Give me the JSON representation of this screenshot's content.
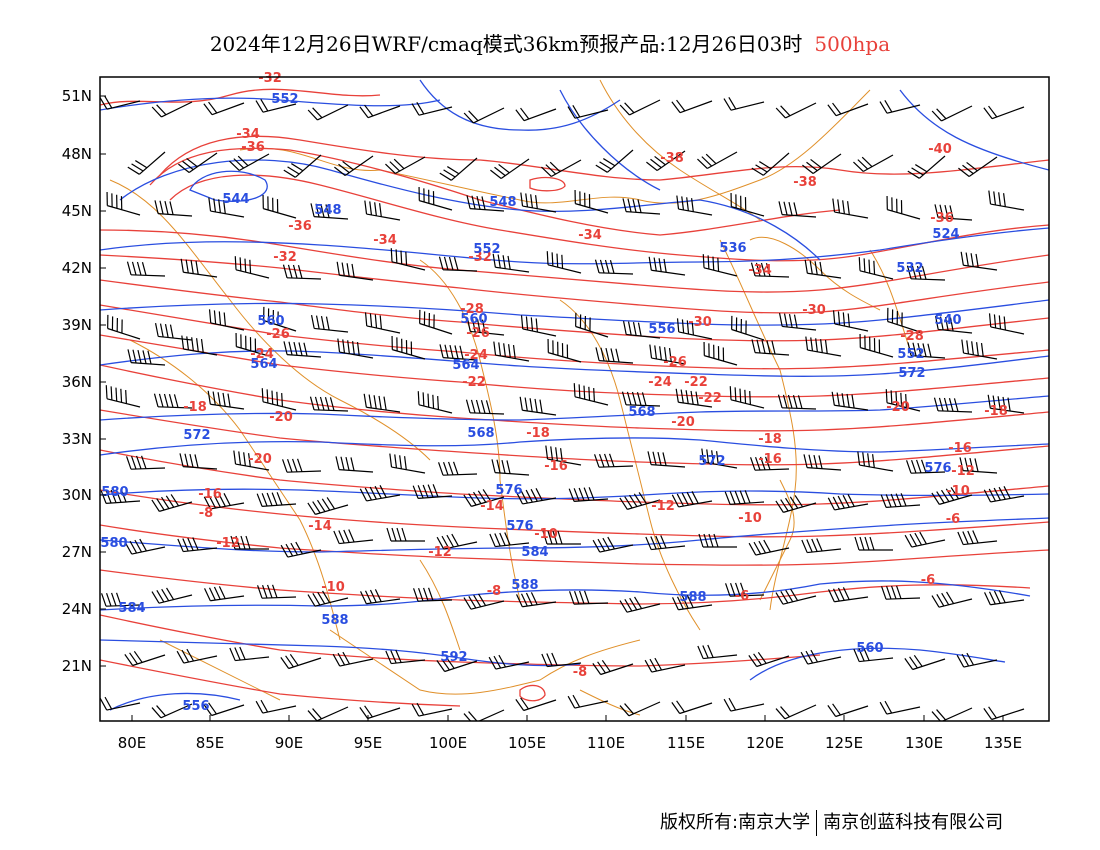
{
  "title": {
    "main": "2024年12月26日WRF/cmaq模式36km预报产品:12月26日03时",
    "level": "500hpa"
  },
  "colors": {
    "temperature": "#e8413a",
    "height": "#2a4ee0",
    "border": "#e0902a",
    "wind": "#000000",
    "frame": "#000000"
  },
  "axes": {
    "lat_labels": [
      "51N",
      "48N",
      "45N",
      "42N",
      "39N",
      "36N",
      "33N",
      "30N",
      "27N",
      "24N",
      "21N"
    ],
    "lon_labels": [
      "80E",
      "85E",
      "90E",
      "95E",
      "100E",
      "105E",
      "110E",
      "115E",
      "120E",
      "125E",
      "130E",
      "135E"
    ]
  },
  "temperature_labels": [
    "-32",
    "-34",
    "-36",
    "-38",
    "-40",
    "-36",
    "-34",
    "-34",
    "-36",
    "-38",
    "-34",
    "-32",
    "-32",
    "-30",
    "-28",
    "-26",
    "-24",
    "-24",
    "-22",
    "-20",
    "-22",
    "-20",
    "-18",
    "-18",
    "-16",
    "-16",
    "-14",
    "-12",
    "-12",
    "-10",
    "-10",
    "-8",
    "-6",
    "-6",
    "-6",
    "-28",
    "-26",
    "-24",
    "-22",
    "-20",
    "-18",
    "-16",
    "-14",
    "-12",
    "-10",
    "-8",
    "-30",
    "-26",
    "-20",
    "-18",
    "-16",
    "-12",
    "-10",
    "-8"
  ],
  "height_labels": [
    "552",
    "544",
    "548",
    "548",
    "552",
    "536",
    "532",
    "524",
    "540",
    "560",
    "560",
    "556",
    "552",
    "564",
    "564",
    "568",
    "568",
    "572",
    "572",
    "576",
    "576",
    "580",
    "580",
    "584",
    "584",
    "588",
    "588",
    "592",
    "588",
    "560",
    "556",
    "572",
    "576"
  ],
  "footer": {
    "left": "版权所有:南京大学",
    "right": "南京创蓝科技有限公司"
  }
}
